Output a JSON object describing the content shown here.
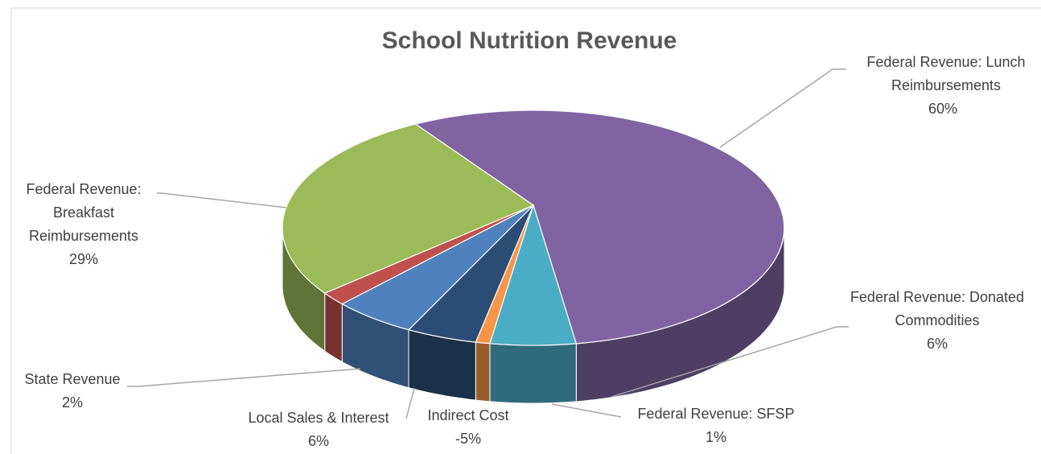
{
  "chart_data": {
    "type": "pie",
    "title": "School Nutrition Revenue",
    "categories": [
      "Federal Revenue:  Lunch Reimbursements",
      "Federal Revenue: Donated Commodities",
      "Federal Revenue:  SFSP",
      "Indirect Cost",
      "Local Sales & Interest",
      "State Revenue",
      "Federal Revenue: Breakfast Reimbursements"
    ],
    "values": [
      60,
      6,
      1,
      -5,
      6,
      2,
      29
    ],
    "value_labels": [
      "60%",
      "6%",
      "1%",
      "-5%",
      "6%",
      "2%",
      "29%"
    ],
    "colors": [
      "#8064a2",
      "#4bacc6",
      "#f79646",
      "#2c4d75",
      "#4f81bd",
      "#c0504d",
      "#9bbb59"
    ],
    "three_d": true
  }
}
